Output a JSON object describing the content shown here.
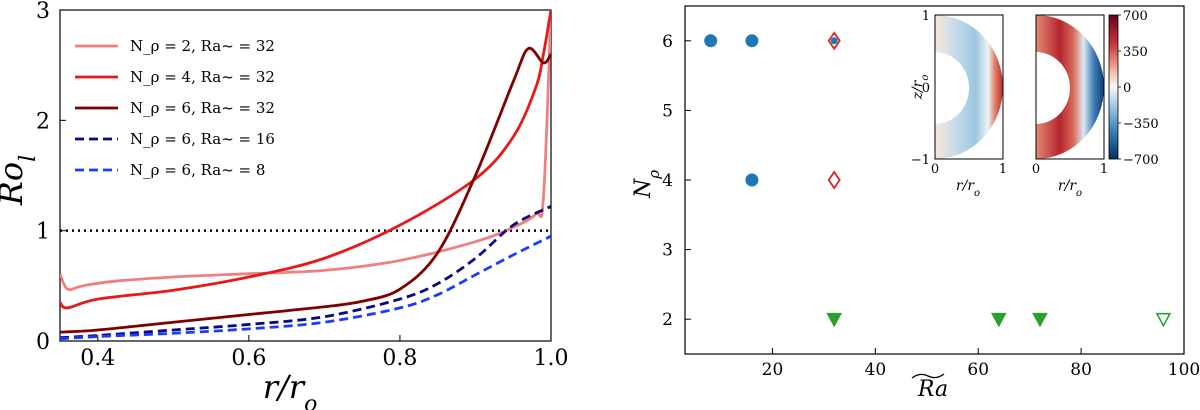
{
  "chart_data": [
    {
      "type": "line",
      "xlabel": "r/r_o",
      "ylabel": "Ro_l",
      "xlim": [
        0.35,
        1.0
      ],
      "ylim": [
        0,
        3
      ],
      "xticks": [
        "0.4",
        "0.6",
        "0.8",
        "1.0"
      ],
      "yticks": [
        "0",
        "1",
        "2",
        "3"
      ],
      "reference_line": {
        "y": 1,
        "style": "dotted",
        "color": "#000000"
      },
      "legend_position": "upper-left",
      "series": [
        {
          "name": "N_ρ = 2, Ra~ = 32",
          "color": "#f08080",
          "dash": "solid",
          "x": [
            0.35,
            0.36,
            0.38,
            0.42,
            0.5,
            0.6,
            0.7,
            0.8,
            0.9,
            0.95,
            0.98,
            0.99,
            1.0
          ],
          "y": [
            0.61,
            0.47,
            0.5,
            0.54,
            0.58,
            0.61,
            0.64,
            0.73,
            0.9,
            1.03,
            1.15,
            1.3,
            3.0
          ]
        },
        {
          "name": "N_ρ = 4, Ra~ = 32",
          "color": "#e8191b",
          "dash": "solid",
          "x": [
            0.35,
            0.36,
            0.4,
            0.5,
            0.6,
            0.7,
            0.8,
            0.9,
            0.95,
            0.98,
            0.99,
            1.0
          ],
          "y": [
            0.35,
            0.3,
            0.38,
            0.46,
            0.58,
            0.75,
            1.05,
            1.47,
            1.85,
            2.3,
            2.6,
            3.0
          ]
        },
        {
          "name": "N_ρ = 6, Ra~ = 32",
          "color": "#800000",
          "dash": "solid",
          "x": [
            0.35,
            0.4,
            0.5,
            0.6,
            0.7,
            0.75,
            0.8,
            0.85,
            0.9,
            0.95,
            0.97,
            0.99,
            1.0
          ],
          "y": [
            0.08,
            0.1,
            0.17,
            0.24,
            0.31,
            0.36,
            0.47,
            0.8,
            1.5,
            2.35,
            2.65,
            2.52,
            2.6
          ]
        },
        {
          "name": "N_ρ = 6, Ra~ = 16",
          "color": "#0a0a80",
          "dash": "dashed",
          "x": [
            0.35,
            0.4,
            0.5,
            0.6,
            0.7,
            0.8,
            0.85,
            0.9,
            0.95,
            1.0
          ],
          "y": [
            0.03,
            0.05,
            0.1,
            0.15,
            0.22,
            0.38,
            0.52,
            0.75,
            1.05,
            1.22
          ]
        },
        {
          "name": "N_ρ = 6, Ra~ = 8",
          "color": "#1a3cff",
          "dash": "dashed",
          "x": [
            0.35,
            0.4,
            0.5,
            0.6,
            0.7,
            0.8,
            0.85,
            0.9,
            0.95,
            1.0
          ],
          "y": [
            0.02,
            0.04,
            0.07,
            0.11,
            0.17,
            0.3,
            0.42,
            0.6,
            0.78,
            0.95
          ]
        }
      ]
    },
    {
      "type": "scatter",
      "xlabel": "Ra~",
      "ylabel": "N_ρ",
      "xlim": [
        3,
        100
      ],
      "ylim": [
        1.5,
        6.5
      ],
      "xticks": [
        "20",
        "40",
        "60",
        "80",
        "100"
      ],
      "yticks": [
        "2",
        "3",
        "4",
        "5",
        "6"
      ],
      "series": [
        {
          "marker": "circle",
          "color": "#1f77b4",
          "filled": true,
          "x": [
            8,
            16,
            16
          ],
          "y": [
            6,
            6,
            4
          ]
        },
        {
          "marker": "diamond",
          "color": "#d62728",
          "filled": false,
          "x": [
            32,
            32
          ],
          "y": [
            6,
            4
          ]
        },
        {
          "marker": "circle-small",
          "color": "#1f77b4",
          "filled": true,
          "x": [
            32
          ],
          "y": [
            6
          ]
        },
        {
          "marker": "triangle-down",
          "color": "#2ca02c",
          "filled": true,
          "x": [
            32,
            64,
            72
          ],
          "y": [
            2,
            2,
            2
          ]
        },
        {
          "marker": "triangle-down",
          "color": "#2ca02c",
          "filled": false,
          "x": [
            96
          ],
          "y": [
            2
          ]
        }
      ],
      "insets": {
        "xlabel": "r/r_o",
        "ylabel": "z/r_o",
        "xticks": [
          "0",
          "1"
        ],
        "yticks": [
          "−1",
          "0",
          "1"
        ],
        "colorbar_ticks": [
          "700",
          "350",
          "0",
          "−350",
          "−700"
        ],
        "colormap": "RdBu_r"
      }
    }
  ]
}
